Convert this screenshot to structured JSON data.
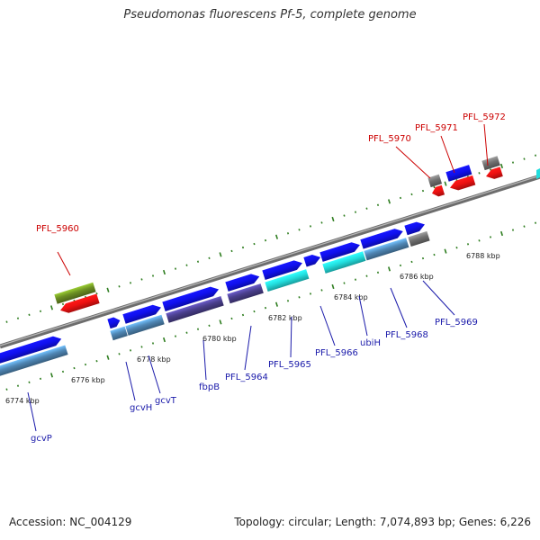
{
  "title": "Pseudomonas fluorescens Pf-5, complete genome",
  "footer": {
    "accession": "Accession: NC_004129",
    "topology": "Topology: circular; Length: 7,074,893 bp; Genes: 6,226"
  },
  "colors": {
    "backbone": "#808080",
    "tick": "#2e7d1f",
    "label_red": "#cc0000",
    "label_blue": "#1a1aaa",
    "blue": "#1010ee",
    "cyan": "#22dddd",
    "steel": "#4f86b4",
    "slate": "#4a3f8c",
    "olive": "#6b8e23",
    "red": "#ee1111",
    "gray": "#707070"
  },
  "scale_labels": [
    "6774 kbp",
    "6776 kbp",
    "6778 kbp",
    "6780 kbp",
    "6782 kbp",
    "6784 kbp",
    "6786 kbp",
    "6788 kbp"
  ],
  "gene_labels": [
    {
      "text": "PFL_5960",
      "color": "red"
    },
    {
      "text": "PFL_5970",
      "color": "red"
    },
    {
      "text": "PFL_5971",
      "color": "red"
    },
    {
      "text": "PFL_5972",
      "color": "red"
    },
    {
      "text": "gcvP",
      "color": "blue"
    },
    {
      "text": "gcvH",
      "color": "blue"
    },
    {
      "text": "gcvT",
      "color": "blue"
    },
    {
      "text": "fbpB",
      "color": "blue"
    },
    {
      "text": "PFL_5964",
      "color": "blue"
    },
    {
      "text": "PFL_5965",
      "color": "blue"
    },
    {
      "text": "PFL_5966",
      "color": "blue"
    },
    {
      "text": "ubiH",
      "color": "blue"
    },
    {
      "text": "PFL_5968",
      "color": "blue"
    },
    {
      "text": "PFL_5969",
      "color": "blue"
    }
  ],
  "features": [
    {
      "name": "gcvP",
      "track": "fwd-blue",
      "color": "blue"
    },
    {
      "name": "gcvP-cog",
      "track": "cog",
      "color": "steel"
    },
    {
      "name": "gcvH",
      "track": "fwd-blue",
      "color": "blue"
    },
    {
      "name": "gcvH-cog",
      "track": "cog",
      "color": "steel"
    },
    {
      "name": "gcvT",
      "track": "fwd-blue",
      "color": "blue"
    },
    {
      "name": "gcvT-cog",
      "track": "cog",
      "color": "steel"
    },
    {
      "name": "fbpB",
      "track": "fwd-blue",
      "color": "blue"
    },
    {
      "name": "fbpB-cog",
      "track": "cog",
      "color": "slate"
    },
    {
      "name": "PFL_5964",
      "track": "fwd-blue",
      "color": "blue"
    },
    {
      "name": "PFL_5964-cog",
      "track": "cog",
      "color": "slate"
    },
    {
      "name": "PFL_5965",
      "track": "fwd-blue",
      "color": "blue"
    },
    {
      "name": "PFL_5965-cog",
      "track": "cog",
      "color": "cyan"
    },
    {
      "name": "PFL_5966",
      "track": "fwd-blue",
      "color": "blue"
    },
    {
      "name": "ubiH",
      "track": "fwd-blue",
      "color": "blue"
    },
    {
      "name": "ubiH-cog",
      "track": "cog",
      "color": "cyan"
    },
    {
      "name": "PFL_5968",
      "track": "fwd-blue",
      "color": "blue"
    },
    {
      "name": "PFL_5968-cog",
      "track": "cog",
      "color": "steel"
    },
    {
      "name": "PFL_5969",
      "track": "fwd-blue",
      "color": "blue"
    },
    {
      "name": "PFL_5969-cog",
      "track": "cog",
      "color": "gray"
    },
    {
      "name": "PFL_5960",
      "track": "rev-olive",
      "color": "olive"
    },
    {
      "name": "PFL_5960-red",
      "track": "rev-red",
      "color": "red"
    },
    {
      "name": "PFL_5970",
      "track": "rev-gray",
      "color": "gray"
    },
    {
      "name": "PFL_5970-red",
      "track": "rev-red",
      "color": "red"
    },
    {
      "name": "PFL_5971",
      "track": "rev-blue",
      "color": "blue"
    },
    {
      "name": "PFL_5971-red",
      "track": "rev-red",
      "color": "red"
    },
    {
      "name": "PFL_5972",
      "track": "rev-gray",
      "color": "gray"
    },
    {
      "name": "PFL_5972-red",
      "track": "rev-red",
      "color": "red"
    }
  ]
}
